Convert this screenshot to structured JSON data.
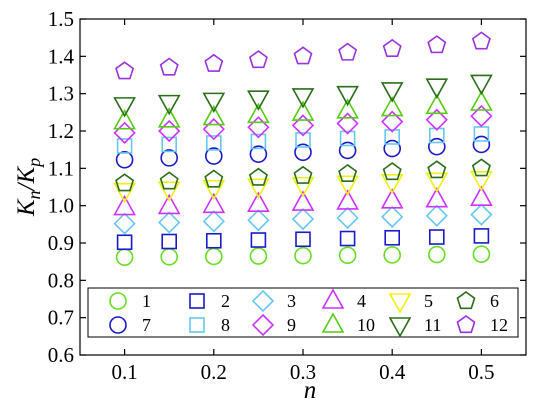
{
  "chart_data": {
    "type": "scatter",
    "title": "",
    "xlabel": "n",
    "ylabel_main": "K",
    "ylabel_sub_num": "n",
    "ylabel_den": "K",
    "ylabel_sub_den": "p",
    "xlim": [
      0.05,
      0.55
    ],
    "ylim": [
      0.6,
      1.5
    ],
    "xticks": [
      0.1,
      0.2,
      0.3,
      0.4,
      0.5
    ],
    "xtick_labels": [
      "0.1",
      "0.2",
      "0.3",
      "0.4",
      "0.5"
    ],
    "yticks": [
      0.6,
      0.7,
      0.8,
      0.9,
      1.0,
      1.1,
      1.2,
      1.3,
      1.4,
      1.5
    ],
    "ytick_labels": [
      "0.6",
      "0.7",
      "0.8",
      "0.9",
      "1.0",
      "1.1",
      "1.2",
      "1.3",
      "1.4",
      "1.5"
    ],
    "grid": false,
    "legend_position": "bottom",
    "x": [
      0.1,
      0.15,
      0.2,
      0.25,
      0.3,
      0.35,
      0.4,
      0.45,
      0.5
    ],
    "series": [
      {
        "name": "1",
        "marker": "circle",
        "color": "#66dd22",
        "values": [
          0.862,
          0.863,
          0.864,
          0.865,
          0.866,
          0.867,
          0.868,
          0.869,
          0.87
        ]
      },
      {
        "name": "2",
        "marker": "square",
        "color": "#1a1ac8",
        "values": [
          0.902,
          0.904,
          0.906,
          0.908,
          0.91,
          0.912,
          0.914,
          0.916,
          0.919
        ]
      },
      {
        "name": "3",
        "marker": "diamond",
        "color": "#66c8f0",
        "values": [
          0.952,
          0.955,
          0.958,
          0.961,
          0.964,
          0.967,
          0.97,
          0.973,
          0.976
        ]
      },
      {
        "name": "4",
        "marker": "triangle-up",
        "color": "#cc33ff",
        "values": [
          0.995,
          0.998,
          1.001,
          1.004,
          1.007,
          1.01,
          1.013,
          1.016,
          1.02
        ]
      },
      {
        "name": "5",
        "marker": "triangle-down",
        "color": "#f0f011",
        "values": [
          1.04,
          1.044,
          1.048,
          1.052,
          1.056,
          1.06,
          1.064,
          1.068,
          1.072
        ]
      },
      {
        "name": "6",
        "marker": "pentagon",
        "color": "#2a6e1a",
        "values": [
          1.06,
          1.065,
          1.07,
          1.075,
          1.08,
          1.085,
          1.09,
          1.095,
          1.1
        ]
      },
      {
        "name": "7",
        "marker": "circle",
        "color": "#1a1ac8",
        "values": [
          1.123,
          1.128,
          1.133,
          1.138,
          1.143,
          1.148,
          1.153,
          1.158,
          1.164
        ]
      },
      {
        "name": "8",
        "marker": "square",
        "color": "#66c8f0",
        "values": [
          1.16,
          1.164,
          1.168,
          1.172,
          1.176,
          1.18,
          1.184,
          1.188,
          1.192
        ]
      },
      {
        "name": "9",
        "marker": "diamond",
        "color": "#cc33ff",
        "values": [
          1.195,
          1.2,
          1.205,
          1.21,
          1.215,
          1.22,
          1.225,
          1.23,
          1.24
        ]
      },
      {
        "name": "10",
        "marker": "triangle-up",
        "color": "#55cc11",
        "values": [
          1.225,
          1.23,
          1.236,
          1.242,
          1.248,
          1.254,
          1.26,
          1.266,
          1.275
        ]
      },
      {
        "name": "11",
        "marker": "triangle-down",
        "color": "#2a6e1a",
        "values": [
          1.27,
          1.276,
          1.282,
          1.288,
          1.294,
          1.3,
          1.31,
          1.32,
          1.33
        ]
      },
      {
        "name": "12",
        "marker": "pentagon",
        "color": "#9933dd",
        "values": [
          1.36,
          1.37,
          1.38,
          1.39,
          1.4,
          1.41,
          1.42,
          1.43,
          1.44
        ]
      }
    ]
  }
}
